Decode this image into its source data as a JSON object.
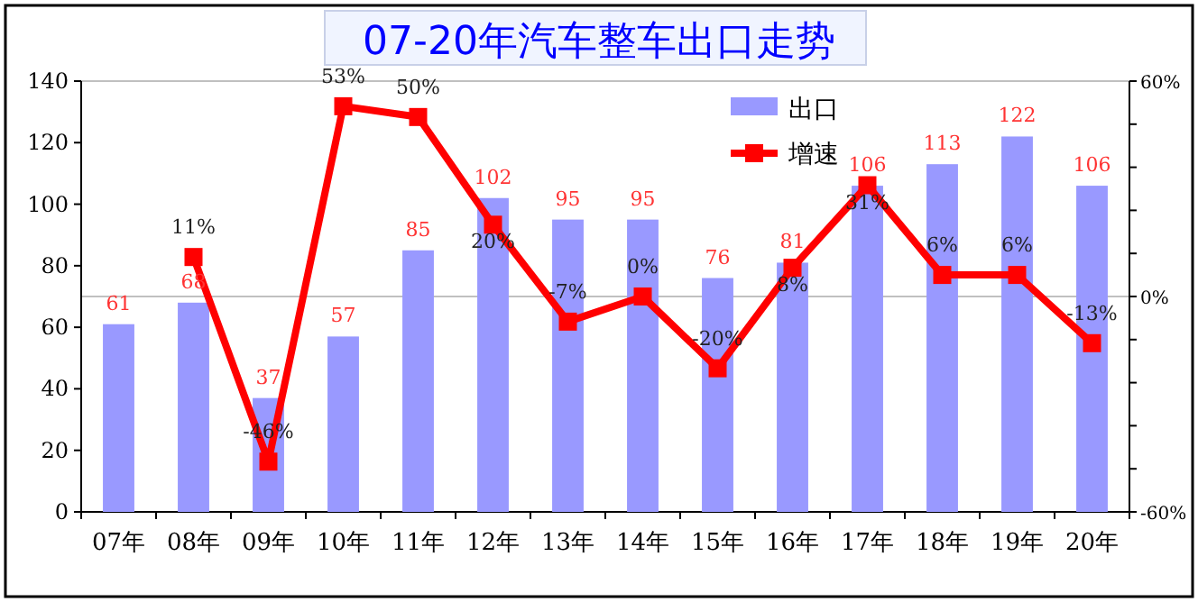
{
  "chart_data": {
    "type": "bar",
    "title": "07-20年汽车整车出口走势",
    "categories": [
      "07年",
      "08年",
      "09年",
      "10年",
      "11年",
      "12年",
      "13年",
      "14年",
      "15年",
      "16年",
      "17年",
      "18年",
      "19年",
      "20年"
    ],
    "series": [
      {
        "name": "出口",
        "color": "#9999ff",
        "values": [
          61,
          68,
          37,
          57,
          85,
          102,
          95,
          95,
          76,
          81,
          106,
          113,
          122,
          106
        ],
        "value_labels": [
          "61",
          "68",
          "37",
          "57",
          "85",
          "102",
          "95",
          "95",
          "76",
          "81",
          "106",
          "113",
          "122",
          "106"
        ]
      },
      {
        "name": "增速",
        "type": "line",
        "axis": "y2",
        "color": "#ff0000",
        "marker": "square",
        "values": [
          null,
          11,
          -46,
          53,
          50,
          20,
          -7,
          0,
          -20,
          8,
          31,
          6,
          6,
          -13
        ],
        "value_labels": [
          null,
          "11%",
          "-46%",
          "53%",
          "50%",
          "20%",
          "-7%",
          "0%",
          "-20%",
          "8%",
          "31%",
          "6%",
          "6%",
          "-13%"
        ]
      }
    ],
    "ylim": [
      0,
      140
    ],
    "yticks": [
      0,
      20,
      40,
      60,
      80,
      100,
      120,
      140
    ],
    "y2lim": [
      -60,
      60
    ],
    "y2ticks": [
      {
        "value": -60,
        "label": "-60%"
      },
      {
        "value": -48,
        "label": null
      },
      {
        "value": -36,
        "label": null
      },
      {
        "value": -24,
        "label": null
      },
      {
        "value": -12,
        "label": null
      },
      {
        "value": 0,
        "label": "0%"
      },
      {
        "value": 12,
        "label": null
      },
      {
        "value": 24,
        "label": null
      },
      {
        "value": 36,
        "label": null
      },
      {
        "value": 48,
        "label": null
      },
      {
        "value": 60,
        "label": "60%"
      }
    ],
    "ref_lines": [
      {
        "axis": "y2",
        "value": 0,
        "color": "#c0c0c0"
      }
    ],
    "legend": "top right"
  }
}
